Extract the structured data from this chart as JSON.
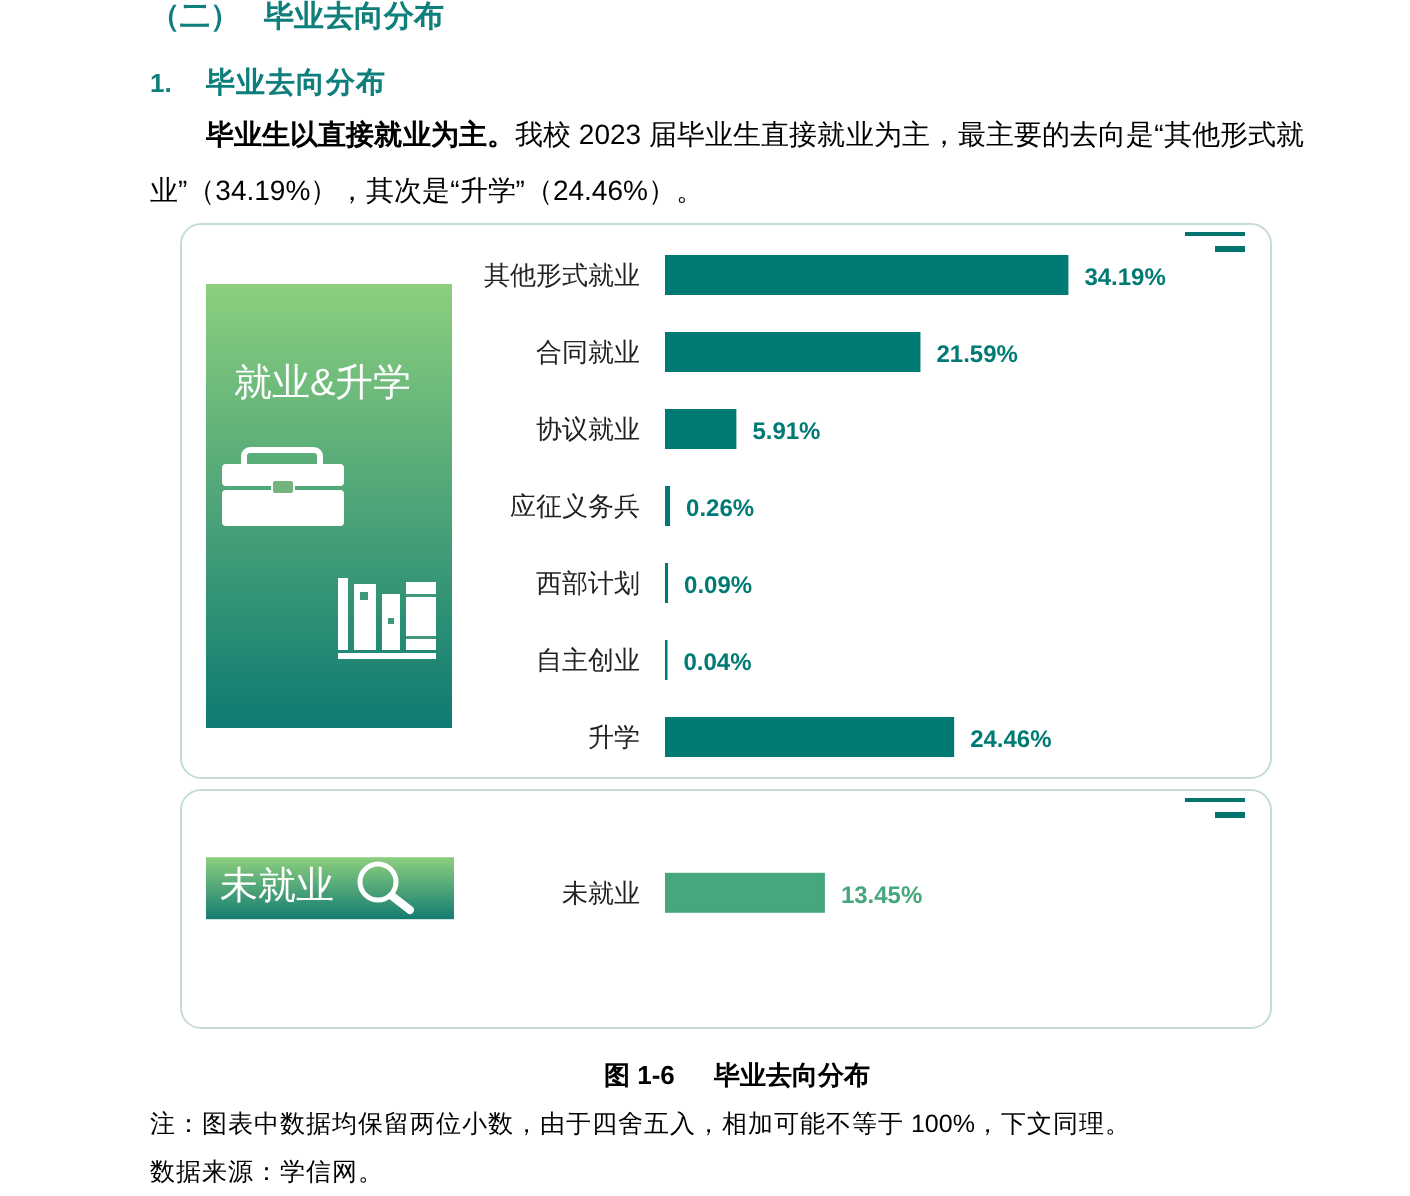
{
  "chart_data": [
    {
      "type": "bar",
      "orientation": "horizontal",
      "title": "就业&升学",
      "categories": [
        "其他形式就业",
        "合同就业",
        "协议就业",
        "应征义务兵",
        "西部计划",
        "自主创业",
        "升学"
      ],
      "values": [
        34.19,
        21.59,
        5.91,
        0.26,
        0.09,
        0.04,
        24.46
      ],
      "value_labels": [
        "34.19%",
        "21.59%",
        "5.91%",
        "0.26%",
        "0.09%",
        "0.04%",
        "24.46%"
      ],
      "color": "#007a74",
      "annotations": [
        "（二）",
        "毕业去向分布",
        "1.",
        "毕业去向分布",
        "**毕业生以直接就业为主。**我校 2023 届毕业生直接就业为主，最主要的去向是“其他形式就业”（34.19%），其次是“升学”（24.46%）。"
      ]
    },
    {
      "type": "bar",
      "orientation": "horizontal",
      "title": "未就业",
      "categories": [
        "未就业"
      ],
      "values": [
        13.45
      ],
      "value_labels": [
        "13.45%"
      ],
      "color": "#46a67c",
      "annotations": [
        "图 1-6",
        "毕业去向分布",
        "注：图表中数据均保留两位小数，由于四舍五入，相加可能不等于 100%，下文同理。",
        "数据来源：学信网。"
      ]
    }
  ]
}
